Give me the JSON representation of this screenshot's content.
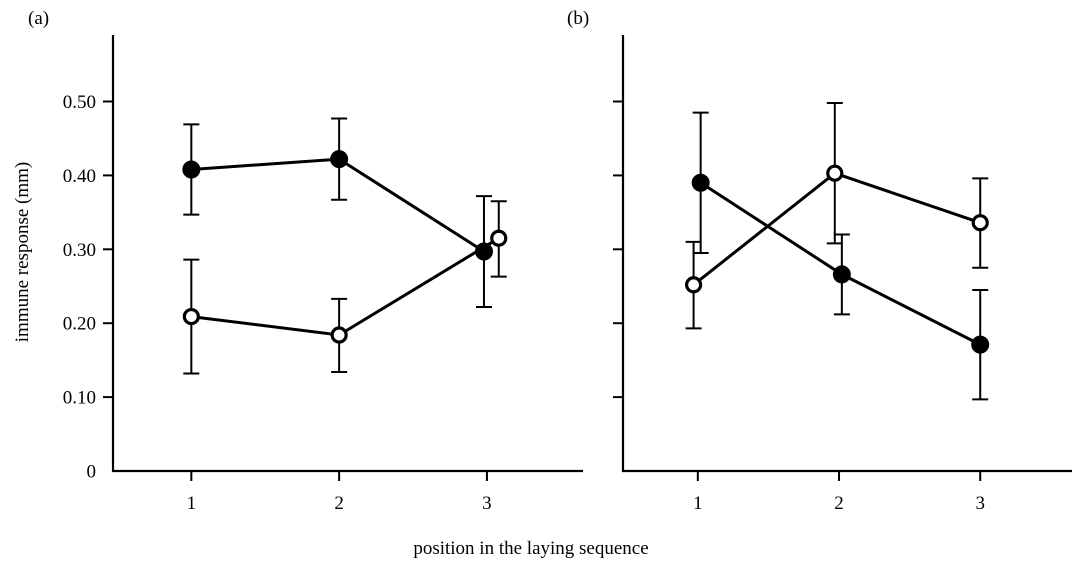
{
  "figure": {
    "xlabel": "position in the laying sequence",
    "ylabel": "immune response (mm)"
  },
  "chart_data": [
    {
      "type": "line",
      "panel_label": "(a)",
      "x": [
        1,
        2,
        3
      ],
      "xticks": [
        "1",
        "2",
        "3"
      ],
      "xlim": [
        0.47,
        3.65
      ],
      "ylim": [
        0,
        0.59
      ],
      "yticks": [
        "0",
        "0.10",
        "0.20",
        "0.30",
        "0.40",
        "0.50"
      ],
      "yticks_values": [
        0,
        0.1,
        0.2,
        0.3,
        0.4,
        0.5
      ],
      "grid": false,
      "series": [
        {
          "marker": "filled",
          "x": [
            1,
            2,
            2.98
          ],
          "values": [
            0.408,
            0.422,
            0.297
          ],
          "err_upper": [
            0.469,
            0.477,
            0.372
          ],
          "err_lower": [
            0.347,
            0.367,
            0.222
          ]
        },
        {
          "marker": "open",
          "x": [
            1,
            2,
            3.08
          ],
          "values": [
            0.209,
            0.184,
            0.315
          ],
          "err_upper": [
            0.286,
            0.233,
            0.365
          ],
          "err_lower": [
            0.132,
            0.134,
            0.263
          ]
        }
      ]
    },
    {
      "type": "line",
      "panel_label": "(b)",
      "x": [
        1,
        2,
        3
      ],
      "xticks": [
        "1",
        "2",
        "3"
      ],
      "xlim": [
        0.47,
        3.65
      ],
      "ylim": [
        0,
        0.59
      ],
      "yticks": [],
      "yticks_values": [
        0,
        0.1,
        0.2,
        0.3,
        0.4,
        0.5
      ],
      "grid": false,
      "series": [
        {
          "marker": "filled",
          "x": [
            1.02,
            2.02,
            3
          ],
          "values": [
            0.39,
            0.266,
            0.171
          ],
          "err_upper": [
            0.485,
            0.32,
            0.245
          ],
          "err_lower": [
            0.295,
            0.212,
            0.097
          ]
        },
        {
          "marker": "open",
          "x": [
            0.97,
            1.97,
            3
          ],
          "values": [
            0.252,
            0.403,
            0.336
          ],
          "err_upper": [
            0.31,
            0.498,
            0.396
          ],
          "err_lower": [
            0.193,
            0.308,
            0.275
          ]
        }
      ]
    }
  ]
}
